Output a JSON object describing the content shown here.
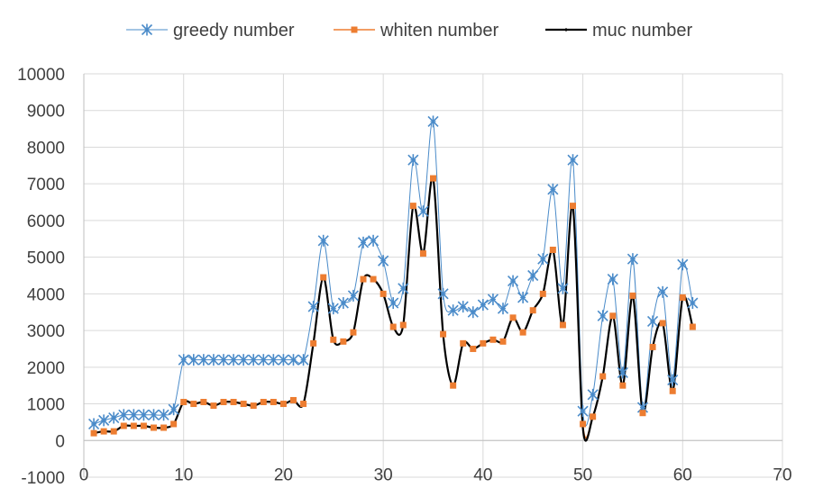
{
  "chart_data": {
    "type": "line",
    "title": "",
    "xlabel": "",
    "ylabel": "",
    "xlim": [
      0,
      70
    ],
    "ylim": [
      -1000,
      10000
    ],
    "x_ticks": [
      0,
      10,
      20,
      30,
      40,
      50,
      60,
      70
    ],
    "y_ticks": [
      -1000,
      0,
      1000,
      2000,
      3000,
      4000,
      5000,
      6000,
      7000,
      8000,
      9000,
      10000
    ],
    "x_tick_labels": [
      "0",
      "10",
      "20",
      "30",
      "40",
      "50",
      "60",
      "70"
    ],
    "y_tick_labels": [
      "-1000",
      "0",
      "1000",
      "2000",
      "3000",
      "4000",
      "5000",
      "6000",
      "7000",
      "8000",
      "9000",
      "10000"
    ],
    "grid": true,
    "legend_position": "top",
    "x": [
      1,
      2,
      3,
      4,
      5,
      6,
      7,
      8,
      9,
      10,
      11,
      12,
      13,
      14,
      15,
      16,
      17,
      18,
      19,
      20,
      21,
      22,
      23,
      24,
      25,
      26,
      27,
      28,
      29,
      30,
      31,
      32,
      33,
      34,
      35,
      36,
      37,
      38,
      39,
      40,
      41,
      42,
      43,
      44,
      45,
      46,
      47,
      48,
      49,
      50,
      51,
      52,
      53,
      54,
      55,
      56,
      57,
      58,
      59,
      60,
      61
    ],
    "series": [
      {
        "name": "greedy number",
        "color": "#4a8bc9",
        "marker": "asterisk",
        "values": [
          450,
          550,
          620,
          700,
          700,
          700,
          700,
          700,
          850,
          2200,
          2200,
          2200,
          2200,
          2200,
          2200,
          2200,
          2200,
          2200,
          2200,
          2200,
          2200,
          2200,
          3650,
          5450,
          3600,
          3750,
          3950,
          5400,
          5450,
          4900,
          3750,
          4150,
          7650,
          6250,
          8700,
          4000,
          3550,
          3650,
          3500,
          3700,
          3850,
          3600,
          4350,
          3900,
          4500,
          4950,
          6850,
          4150,
          7650,
          800,
          1250,
          3400,
          4400,
          1850,
          4950,
          900,
          3250,
          4050,
          1650,
          4800,
          3750
        ]
      },
      {
        "name": "whiten number",
        "color": "#ed7d31",
        "marker": "square",
        "values": [
          200,
          250,
          250,
          400,
          400,
          400,
          350,
          350,
          450,
          1050,
          1000,
          1050,
          950,
          1050,
          1050,
          1000,
          950,
          1050,
          1050,
          1000,
          1100,
          1000,
          2650,
          4450,
          2750,
          2700,
          2950,
          4400,
          4400,
          4000,
          3100,
          3150,
          6400,
          5100,
          7150,
          2900,
          1500,
          2650,
          2500,
          2650,
          2750,
          2700,
          3350,
          2950,
          3550,
          4000,
          5200,
          3150,
          6400,
          450,
          650,
          1750,
          3400,
          1500,
          3950,
          750,
          2550,
          3200,
          1350,
          3900,
          3100
        ]
      },
      {
        "name": "muc number",
        "color": "#000000",
        "marker": "star",
        "values": [
          200,
          250,
          250,
          400,
          400,
          400,
          350,
          350,
          450,
          1050,
          1000,
          1050,
          950,
          1050,
          1050,
          1000,
          950,
          1050,
          1050,
          1000,
          1100,
          1000,
          2650,
          4450,
          2750,
          2700,
          2950,
          4400,
          4400,
          4000,
          3100,
          3150,
          6400,
          5100,
          7150,
          2900,
          1500,
          2650,
          2500,
          2650,
          2750,
          2700,
          3350,
          2950,
          3550,
          4000,
          5200,
          3150,
          6400,
          350,
          650,
          1750,
          3400,
          1500,
          3950,
          750,
          2550,
          3200,
          1350,
          3900,
          3100
        ]
      }
    ]
  }
}
